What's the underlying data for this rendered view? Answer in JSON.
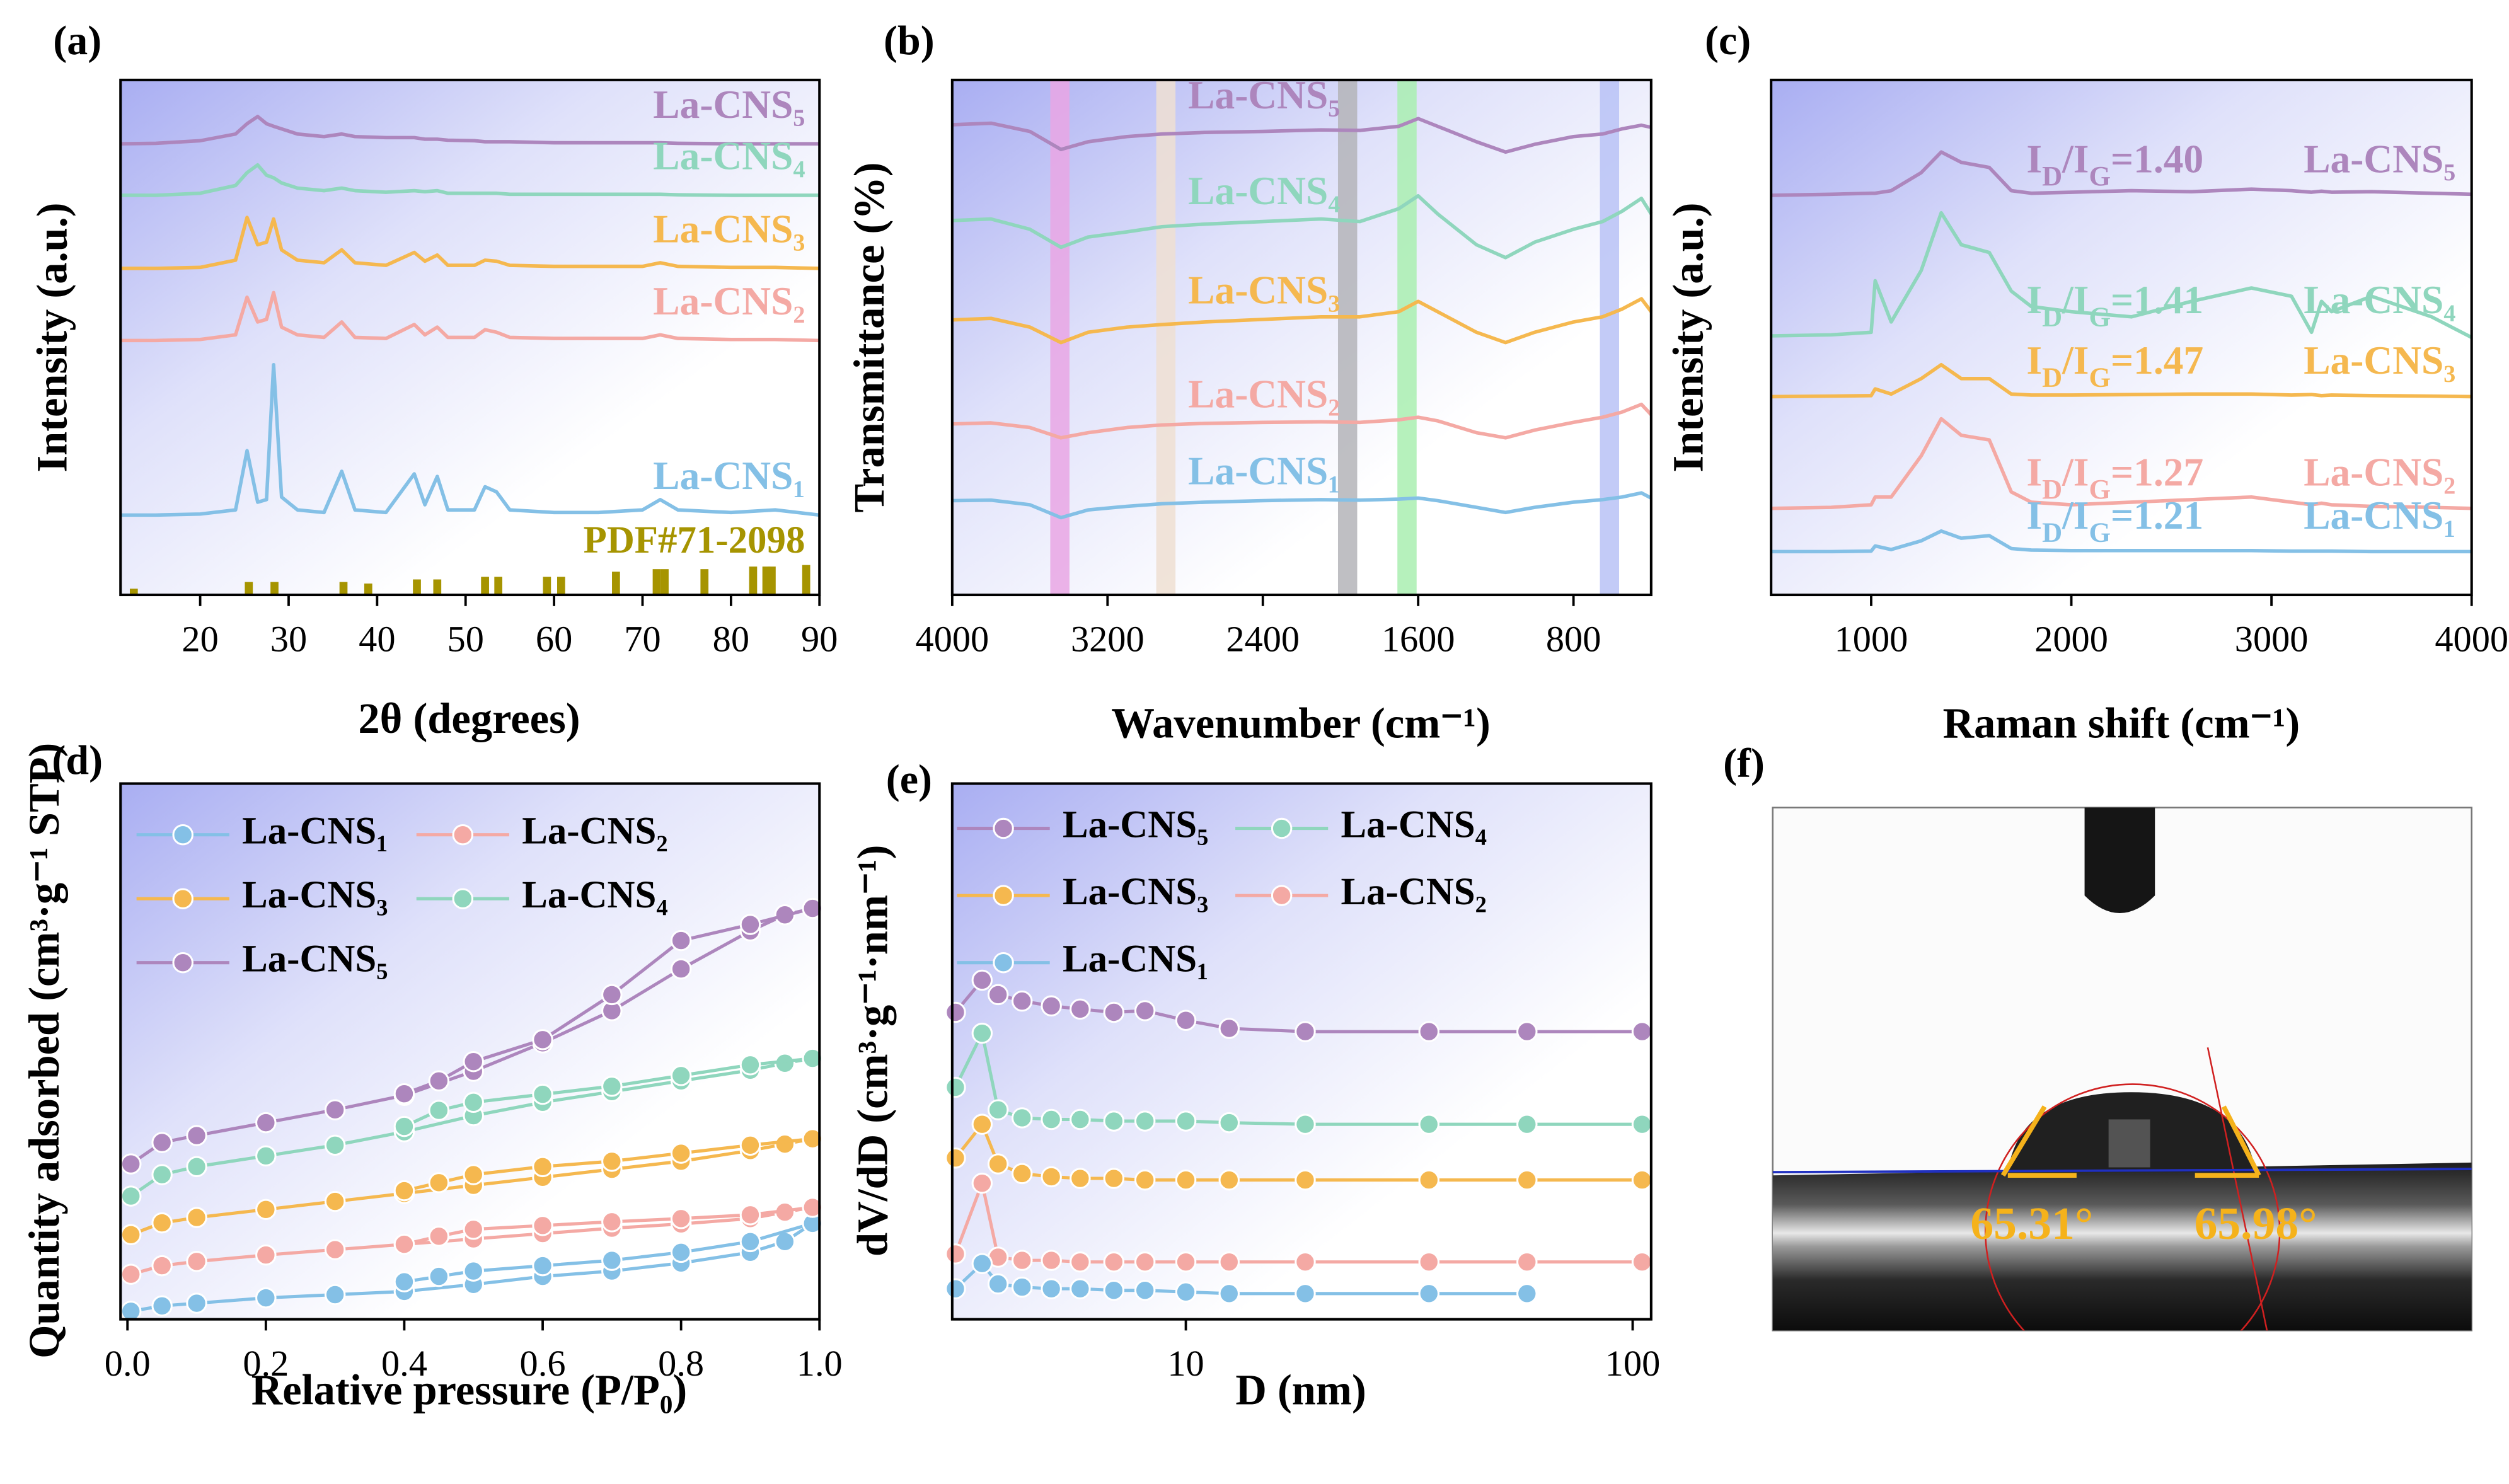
{
  "chart_data": [
    {
      "type": "line",
      "label": "(a)",
      "x_label": "2θ (degrees)",
      "y_label": "Intensity (a.u.)",
      "xlim": [
        11,
        90
      ],
      "xticks": [
        20,
        30,
        40,
        50,
        60,
        70,
        80,
        90
      ],
      "ylim": [
        0,
        100
      ],
      "x": [
        11,
        15,
        20,
        24,
        25.3,
        26.5,
        27.5,
        28.3,
        29.2,
        31,
        34,
        36,
        37.5,
        41,
        44.2,
        45.4,
        46.8,
        48,
        51,
        52.2,
        53.5,
        55,
        60,
        65,
        70,
        72,
        74,
        80,
        85,
        90
      ],
      "series": [
        {
          "name": "La-CNS₅",
          "color": "#ad86bd",
          "values": [
            87.6,
            87.7,
            88.2,
            89.5,
            91.5,
            92.9,
            91.5,
            91,
            90.5,
            89.5,
            89,
            89.5,
            89,
            88.8,
            88.8,
            88.5,
            88.5,
            88.3,
            88.2,
            88,
            88,
            88,
            87.8,
            87.8,
            87.8,
            87.8,
            87.7,
            87.6,
            87.6,
            87.6
          ]
        },
        {
          "name": "La-CNS₄",
          "color": "#8fd6bd",
          "values": [
            77.6,
            77.6,
            78,
            79.5,
            82,
            83.5,
            81.5,
            81,
            80,
            79,
            78.5,
            79,
            78.5,
            78.2,
            78.5,
            78.3,
            78.5,
            78,
            78,
            78,
            78,
            77.8,
            77.8,
            77.8,
            77.8,
            77.8,
            77.7,
            77.6,
            77.6,
            77.6
          ]
        },
        {
          "name": "La-CNS₃",
          "color": "#f5b84f",
          "values": [
            63.4,
            63.4,
            63.6,
            65,
            73.3,
            68,
            68.5,
            73,
            67,
            65,
            64.5,
            67,
            64.5,
            64,
            66.5,
            64.8,
            66,
            64,
            64,
            65,
            64.8,
            64,
            63.8,
            63.8,
            63.8,
            64.5,
            63.8,
            63.6,
            63.6,
            63.4
          ]
        },
        {
          "name": "La-CNS₂",
          "color": "#f4a9a4",
          "values": [
            49.4,
            49.4,
            49.6,
            50.5,
            57.8,
            53,
            53.5,
            58.7,
            52,
            50.5,
            50,
            53,
            50,
            49.8,
            52.5,
            50.5,
            52,
            50,
            50,
            51.5,
            51,
            50,
            49.8,
            49.8,
            49.8,
            50.5,
            49.8,
            49.6,
            49.6,
            49.4
          ]
        },
        {
          "name": "La-CNS₁",
          "color": "#84c0e6",
          "values": [
            15.5,
            15.5,
            15.7,
            16.5,
            28,
            18,
            18.5,
            44.7,
            19,
            16.5,
            16,
            24,
            16.5,
            16,
            23.5,
            17.5,
            23,
            16.5,
            16.5,
            21,
            20,
            16.5,
            16,
            16,
            16.5,
            18.5,
            16.5,
            16,
            16.5,
            15.5
          ]
        }
      ],
      "reference": {
        "name": "PDF#71-2098",
        "color": "#a69400",
        "x": [
          12.5,
          25.5,
          28.4,
          36.2,
          39,
          44.5,
          46.8,
          52.2,
          53.7,
          59.2,
          60.8,
          67,
          71.6,
          72.5,
          77,
          82.5,
          84,
          84.6,
          88.5
        ],
        "values": [
          1.2,
          2.5,
          2.5,
          2.5,
          2.2,
          3,
          3,
          3.5,
          3.5,
          3.5,
          3.5,
          4.5,
          5,
          5,
          5,
          5.5,
          5.5,
          5.5,
          5.8
        ]
      }
    },
    {
      "type": "line",
      "label": "(b)",
      "x_label": "Wavenumber (cm⁻¹)",
      "y_label": "Transmittance (%)",
      "xlim": [
        4000,
        400
      ],
      "xticks": [
        4000,
        3200,
        2400,
        1600,
        800
      ],
      "ylim": [
        0,
        100
      ],
      "bands": [
        {
          "range": [
            3495,
            3396
          ],
          "color": "#e9a6e4"
        },
        {
          "range": [
            2949,
            2850
          ],
          "color": "#eedfd2"
        },
        {
          "range": [
            2013,
            1914
          ],
          "color": "#b4b4b8"
        },
        {
          "range": [
            1707,
            1608
          ],
          "color": "#a9eeb0"
        },
        {
          "range": [
            664,
            565
          ],
          "color": "#b8c2f6"
        }
      ],
      "x": [
        4000,
        3800,
        3600,
        3440,
        3300,
        3100,
        2920,
        2700,
        2400,
        2100,
        1900,
        1700,
        1600,
        1500,
        1300,
        1150,
        1000,
        800,
        650,
        550,
        450,
        400
      ],
      "series": [
        {
          "name": "La-CNS₅",
          "color": "#ad86bd",
          "values": [
            91.3,
            91.6,
            90,
            86.5,
            88,
            89,
            89.5,
            89.8,
            90,
            90.3,
            90.2,
            91,
            92.5,
            91,
            88,
            86,
            87.5,
            89,
            89.5,
            90.5,
            91.2,
            90.8
          ]
        },
        {
          "name": "La-CNS₄",
          "color": "#8fd6bd",
          "values": [
            72.7,
            73,
            71,
            67.5,
            69.5,
            70.5,
            71.5,
            72,
            72.5,
            73,
            72.5,
            75,
            77.5,
            74,
            68,
            65.5,
            68.5,
            71,
            72.5,
            74.5,
            77,
            74
          ]
        },
        {
          "name": "La-CNS₃",
          "color": "#f5b84f",
          "values": [
            53.4,
            53.7,
            52,
            49,
            51,
            52,
            52.5,
            53,
            53.5,
            54,
            54,
            55,
            57,
            55,
            51,
            49,
            51,
            53,
            54,
            55.5,
            57.5,
            55
          ]
        },
        {
          "name": "La-CNS₂",
          "color": "#f4a9a4",
          "values": [
            33.2,
            33.4,
            32.5,
            30.5,
            31.5,
            32.5,
            33,
            33.3,
            33.5,
            33.6,
            33.5,
            34,
            34.5,
            33.8,
            31.5,
            30.5,
            32,
            33.5,
            34.5,
            35.5,
            37,
            35
          ]
        },
        {
          "name": "La-CNS₁",
          "color": "#84c0e6",
          "values": [
            18.3,
            18.4,
            17.5,
            15,
            16.5,
            17.2,
            17.7,
            18,
            18.3,
            18.5,
            18.4,
            18.6,
            18.8,
            18.3,
            17,
            16,
            17,
            18,
            18.5,
            19,
            19.8,
            18.8
          ]
        }
      ]
    },
    {
      "type": "line",
      "label": "(c)",
      "x_label": "Raman shift (cm⁻¹)",
      "y_label": "Intensity (a.u.)",
      "xlim": [
        500,
        4000
      ],
      "xticks": [
        1000,
        2000,
        3000,
        4000
      ],
      "ylim": [
        0,
        100
      ],
      "x": [
        500,
        800,
        1000,
        1020,
        1100,
        1250,
        1350,
        1450,
        1590,
        1700,
        1800,
        2000,
        2300,
        2600,
        2900,
        3100,
        3200,
        3250,
        3300,
        3500,
        3800,
        4000
      ],
      "series": [
        {
          "name": "La-CNS₅",
          "color": "#ad86bd",
          "ratio_label": "ID/IG=1.40",
          "values": [
            77.6,
            77.8,
            78,
            78,
            78.5,
            82,
            86,
            84,
            83,
            78.5,
            78,
            78.2,
            78.5,
            78.3,
            78.8,
            78.5,
            78.2,
            78.4,
            78.2,
            78.3,
            78,
            77.8
          ]
        },
        {
          "name": "La-CNS₄",
          "color": "#8fd6bd",
          "ratio_label": "ID/IG=1.41",
          "values": [
            50.3,
            50.5,
            51,
            61,
            53,
            63,
            74.2,
            68,
            66.5,
            59,
            56,
            55,
            54,
            57,
            59.6,
            58,
            51,
            57,
            55,
            58,
            54,
            50
          ]
        },
        {
          "name": "La-CNS₃",
          "color": "#f5b84f",
          "ratio_label": "ID/IG=1.47",
          "values": [
            38.5,
            38.6,
            38.7,
            40,
            39,
            42,
            44.7,
            42,
            42,
            39,
            38.8,
            38.8,
            38.9,
            39,
            39,
            38.8,
            38.9,
            38.7,
            38.8,
            38.7,
            38.6,
            38.5
          ]
        },
        {
          "name": "La-CNS₂",
          "color": "#f4a9a4",
          "ratio_label": "ID/IG=1.27",
          "values": [
            16.8,
            17,
            17.5,
            19,
            19,
            27,
            34.2,
            31,
            30.1,
            20,
            18,
            17.5,
            18,
            18.5,
            19,
            18,
            17.5,
            17.8,
            17.5,
            17.2,
            17,
            16.8
          ]
        },
        {
          "name": "La-CNS₁",
          "color": "#84c0e6",
          "ratio_label": "ID/IG=1.21",
          "values": [
            8.4,
            8.4,
            8.5,
            9.5,
            8.8,
            10.5,
            12.4,
            11,
            11.5,
            9,
            8.7,
            8.6,
            8.6,
            8.6,
            8.6,
            8.5,
            8.5,
            8.5,
            8.5,
            8.4,
            8.4,
            8.4
          ]
        }
      ]
    },
    {
      "type": "line",
      "label": "(d)",
      "x_label": "Relative pressure (P/P₀)",
      "y_label": "Quantity adsorbed (cm³·g⁻¹ STP)",
      "xlim": [
        -0.01,
        1.0
      ],
      "xticks": [
        {
          "value": 0,
          "label": "0.0"
        },
        0.2,
        0.4,
        0.6,
        0.8,
        {
          "value": 1,
          "label": "1.0"
        }
      ],
      "ylim": [
        0,
        100
      ],
      "markers": true,
      "legend": "top-left",
      "x": [
        0.005,
        0.05,
        0.1,
        0.2,
        0.3,
        0.4,
        0.5,
        0.6,
        0.7,
        0.8,
        0.9,
        0.95,
        0.99
      ],
      "desorption_x": [
        0.99,
        0.9,
        0.8,
        0.7,
        0.6,
        0.5,
        0.45,
        0.4
      ],
      "series": [
        {
          "name": "La-CNS₁",
          "color": "#84c0e6",
          "values": [
            1.5,
            2.5,
            3,
            4,
            4.6,
            5.2,
            6.5,
            8,
            9,
            10.5,
            12.5,
            14.5,
            17.9
          ],
          "desorption_values": [
            17.9,
            14.5,
            12.5,
            11,
            10,
            9,
            8,
            7
          ]
        },
        {
          "name": "La-CNS₂",
          "color": "#f4a9a4",
          "values": [
            8.4,
            10,
            10.8,
            12,
            13,
            14,
            15,
            16,
            17,
            17.8,
            18.8,
            20,
            20.9
          ],
          "desorption_values": [
            20.9,
            19.5,
            18.8,
            18.2,
            17.5,
            16.8,
            15.5,
            14
          ]
        },
        {
          "name": "La-CNS₃",
          "color": "#f5b84f",
          "values": [
            15.8,
            18,
            19,
            20.5,
            22,
            23.5,
            25,
            26.5,
            28,
            29.5,
            31.5,
            32.7,
            33.7
          ],
          "desorption_values": [
            33.7,
            32.5,
            31,
            29.5,
            28.5,
            27,
            25.5,
            24
          ]
        },
        {
          "name": "La-CNS₄",
          "color": "#8fd6bd",
          "values": [
            23,
            27,
            28.5,
            30.5,
            32.5,
            35,
            38,
            40.5,
            42.5,
            44.5,
            46.5,
            47.8,
            48.7
          ],
          "desorption_values": [
            48.7,
            47.5,
            45.5,
            43.5,
            42,
            40.5,
            39,
            36
          ]
        },
        {
          "name": "La-CNS₅",
          "color": "#ad86bd",
          "values": [
            29,
            33,
            34.3,
            36.7,
            39.1,
            41.8,
            46.3,
            51.6,
            57.6,
            65.4,
            72.5,
            75.5,
            76.7
          ],
          "desorption_values": [
            76.7,
            73.7,
            70.7,
            60.6,
            52.2,
            48.1,
            44.5,
            42.1
          ]
        }
      ]
    },
    {
      "type": "line",
      "label": "(e)",
      "x_label": "D (nm)",
      "y_label": "dV/dD (cm³·g⁻¹·nm⁻¹)",
      "xlim": [
        3,
        110
      ],
      "xticks": [
        10,
        100
      ],
      "xlog": true,
      "ylim": [
        0,
        100
      ],
      "markers": true,
      "legend": "top-left",
      "x": [
        3.05,
        3.5,
        3.8,
        4.3,
        5,
        5.8,
        6.9,
        8.1,
        10,
        12.5,
        18.5,
        35,
        58,
        105
      ],
      "series": [
        {
          "name": "La-CNS₅",
          "color": "#ad86bd",
          "values": [
            57.3,
            63.3,
            60.6,
            59.4,
            58.5,
            57.9,
            57.3,
            57.6,
            55.8,
            54.3,
            53.7,
            53.7,
            53.7,
            53.7
          ]
        },
        {
          "name": "La-CNS₄",
          "color": "#8fd6bd",
          "values": [
            43.3,
            53.4,
            39.1,
            37.6,
            37.3,
            37.3,
            37,
            37,
            37,
            36.7,
            36.4,
            36.4,
            36.4,
            36.4
          ]
        },
        {
          "name": "La-CNS₃",
          "color": "#f5b84f",
          "values": [
            30.1,
            36.4,
            29,
            27.2,
            26.6,
            26.3,
            26.3,
            26,
            26,
            26,
            26,
            26,
            26,
            26
          ]
        },
        {
          "name": "La-CNS₂",
          "color": "#f4a9a4",
          "values": [
            12.2,
            25.4,
            11.6,
            11,
            11,
            10.7,
            10.7,
            10.7,
            10.7,
            10.7,
            10.7,
            10.7,
            10.7,
            10.7
          ]
        },
        {
          "name": "La-CNS₁",
          "color": "#84c0e6",
          "values": [
            5.7,
            10.4,
            6.6,
            6,
            5.7,
            5.7,
            5.4,
            5.4,
            5.1,
            4.8,
            4.8,
            4.8,
            4.8,
            null
          ]
        }
      ]
    }
  ],
  "photo": {
    "label": "(f)",
    "angles": [
      "65.31°",
      "65.98°"
    ]
  }
}
